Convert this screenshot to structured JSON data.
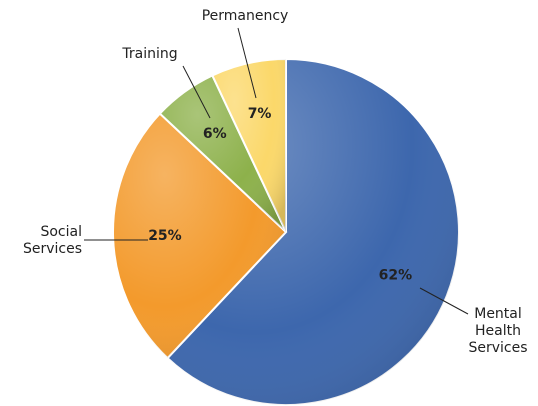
{
  "chart_data": {
    "type": "pie",
    "categories": [
      "Mental Health Services",
      "Social Services",
      "Training",
      "Permanency"
    ],
    "values": [
      62,
      25,
      6,
      7
    ],
    "value_labels": [
      "62%",
      "25%",
      "6%",
      "7%"
    ],
    "colors": [
      "#3d67ad",
      "#f39a2c",
      "#8db14b",
      "#fbd86a"
    ]
  }
}
